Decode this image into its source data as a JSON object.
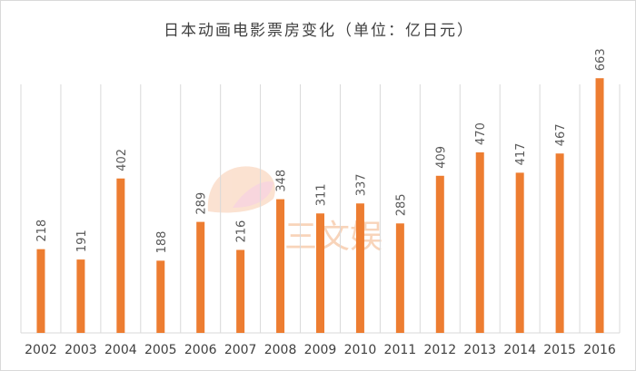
{
  "chart_data": {
    "type": "bar",
    "title": "日本动画电影票房变化（单位：亿日元）",
    "categories": [
      "2002",
      "2003",
      "2004",
      "2005",
      "2006",
      "2007",
      "2008",
      "2009",
      "2010",
      "2011",
      "2012",
      "2013",
      "2014",
      "2015",
      "2016"
    ],
    "values": [
      218,
      191,
      402,
      188,
      289,
      216,
      348,
      311,
      337,
      285,
      409,
      470,
      417,
      467,
      663
    ],
    "xlabel": "",
    "ylabel": "",
    "ylim": [
      0,
      700
    ],
    "grid": "vertical",
    "data_labels": true,
    "colors": {
      "bar": "#ED7D31",
      "grid": "#d9d9d9"
    }
  },
  "watermark": {
    "text": "三文娱",
    "color": "#F4B183"
  }
}
